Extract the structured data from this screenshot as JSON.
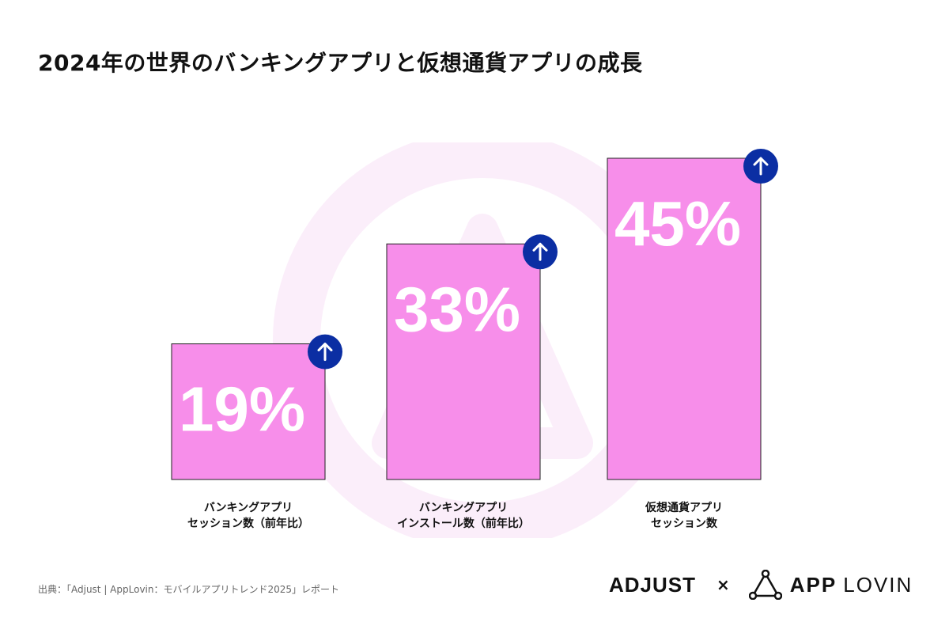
{
  "title": "2024年の世界のバンキングアプリと仮想通貨アプリの成長",
  "chart_data": {
    "type": "bar",
    "categories": [
      [
        "バンキングアプリ",
        "セッション数（前年比）"
      ],
      [
        "バンキングアプリ",
        "インストール数（前年比）"
      ],
      [
        "仮想通貨アプリ",
        "セッション数"
      ]
    ],
    "values": [
      19,
      33,
      45
    ],
    "value_labels": [
      "19%",
      "33%",
      "45%"
    ],
    "unit": "%",
    "ylim": [
      0,
      45
    ],
    "grid": false,
    "indicator": "up-arrow"
  },
  "colors": {
    "bar_fill": "#f78eea",
    "bar_stroke": "#222222",
    "arrow_badge": "#0b2ea3",
    "watermark": "#fbeefa"
  },
  "source": "出典：「Adjust | AppLovin：モバイルアプリトレンド2025」レポート",
  "logos": {
    "adjust": "ADJUST",
    "separator": "×",
    "applovin_app": "APP",
    "applovin_lovin": "LOVIN"
  }
}
